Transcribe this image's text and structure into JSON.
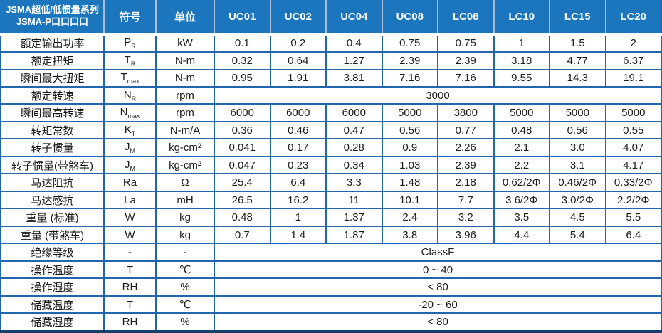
{
  "table": {
    "title_line1": "JSMA超低/低惯量系列",
    "title_line2": "JSMA-P口口口口",
    "symbol_header": "符号",
    "unit_header": "单位",
    "models": [
      "UC01",
      "UC02",
      "UC04",
      "UC08",
      "LC08",
      "LC10",
      "LC15",
      "LC20"
    ],
    "rows": [
      {
        "label": "额定输出功率",
        "sym": "P",
        "sub": "R",
        "unit": "kW",
        "values": [
          "0.1",
          "0.2",
          "0.4",
          "0.75",
          "0.75",
          "1",
          "1.5",
          "2"
        ]
      },
      {
        "label": "额定扭矩",
        "sym": "T",
        "sub": "R",
        "unit": "N-m",
        "values": [
          "0.32",
          "0.64",
          "1.27",
          "2.39",
          "2.39",
          "3.18",
          "4.77",
          "6.37"
        ]
      },
      {
        "label": "瞬间最大扭矩",
        "sym": "T",
        "sub": "max",
        "unit": "N-m",
        "values": [
          "0.95",
          "1.91",
          "3.81",
          "7.16",
          "7.16",
          "9.55",
          "14.3",
          "19.1"
        ]
      },
      {
        "label": "额定转速",
        "sym": "N",
        "sub": "R",
        "unit": "rpm",
        "merged": "3000"
      },
      {
        "label": "瞬间最高转速",
        "sym": "N",
        "sub": "max",
        "unit": "rpm",
        "values": [
          "6000",
          "6000",
          "6000",
          "5000",
          "3800",
          "5000",
          "5000",
          "5000"
        ]
      },
      {
        "label": "转矩常数",
        "sym": "K",
        "sub": "T",
        "unit": "N-m/A",
        "values": [
          "0.36",
          "0.46",
          "0.47",
          "0.56",
          "0.77",
          "0.48",
          "0.56",
          "0.55"
        ]
      },
      {
        "label": "转子惯量",
        "sym": "J",
        "sub": "M",
        "unit": "kg-cm²",
        "values": [
          "0.041",
          "0.17",
          "0.28",
          "0.9",
          "2.26",
          "2.1",
          "3.0",
          "4.07"
        ]
      },
      {
        "label": "转子惯量(带煞车)",
        "sym": "J",
        "sub": "M",
        "unit": "kg-cm²",
        "values": [
          "0.047",
          "0.23",
          "0.34",
          "1.03",
          "2.39",
          "2.2",
          "3.1",
          "4.17"
        ]
      },
      {
        "label": "马达阻抗",
        "sym": "Ra",
        "sub": "",
        "unit": "Ω",
        "values": [
          "25.4",
          "6.4",
          "3.3",
          "1.48",
          "2.18",
          "0.62/2Φ",
          "0.46/2Φ",
          "0.33/2Φ"
        ]
      },
      {
        "label": "马达感抗",
        "sym": "La",
        "sub": "",
        "unit": "mH",
        "values": [
          "26.5",
          "16.2",
          "11",
          "10.1",
          "7.7",
          "3.6/2Φ",
          "3.0/2Φ",
          "2.2/2Φ"
        ]
      },
      {
        "label": "重量 (标准)",
        "sym": "W",
        "sub": "",
        "unit": "kg",
        "values": [
          "0.48",
          "1",
          "1.37",
          "2.4",
          "3.2",
          "3.5",
          "4.5",
          "5.5"
        ]
      },
      {
        "label": "重量 (带煞车)",
        "sym": "W",
        "sub": "",
        "unit": "kg",
        "values": [
          "0.7",
          "1.4",
          "1.87",
          "3.8",
          "3.96",
          "4.4",
          "5.4",
          "6.4"
        ]
      },
      {
        "label": "绝缘等级",
        "sym": "-",
        "sub": "",
        "unit": "-",
        "merged": "ClassF"
      },
      {
        "label": "操作温度",
        "sym": "T",
        "sub": "",
        "unit": "℃",
        "merged": "0 ~ 40"
      },
      {
        "label": "操作湿度",
        "sym": "RH",
        "sub": "",
        "unit": "%",
        "merged": "< 80"
      },
      {
        "label": "储藏温度",
        "sym": "T",
        "sub": "",
        "unit": "℃",
        "merged": "-20 ~ 60"
      },
      {
        "label": "储藏湿度",
        "sym": "RH",
        "sub": "",
        "unit": "%",
        "merged": "< 80"
      }
    ],
    "colors": {
      "header_bg": "#1b76bd",
      "header_divider": "#a9bcd9",
      "grid_border": "#2166ad",
      "outer_bottom_border": "#14406e",
      "header_text": "#ffffff",
      "body_text": "#1c1c1c"
    }
  }
}
